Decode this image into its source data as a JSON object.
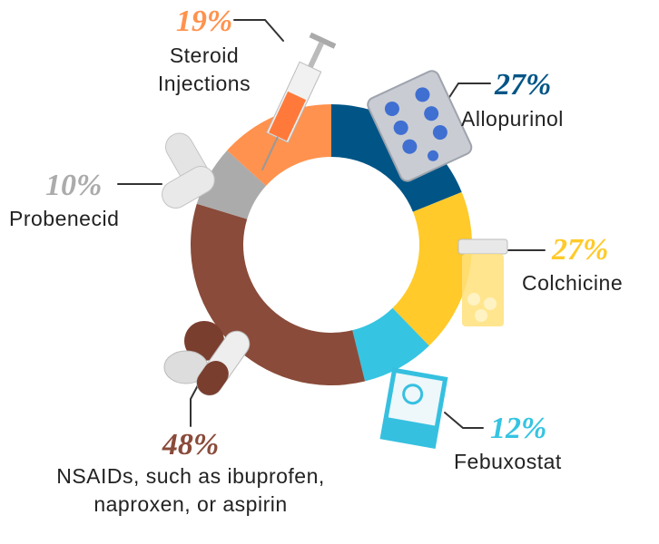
{
  "chart_data": {
    "type": "donut",
    "categories": [
      "Allopurinol",
      "Colchicine",
      "Febuxostat",
      "NSAIDs, such as ibuprofen, naproxen, or aspirin",
      "Probenecid",
      "Steroid Injections"
    ],
    "values": [
      27,
      27,
      12,
      48,
      10,
      19
    ],
    "value_labels": [
      "27%",
      "27%",
      "12%",
      "48%",
      "10%",
      "19%"
    ],
    "colors": [
      "#005586",
      "#ffca2a",
      "#35c4e2",
      "#8a4b3a",
      "#ababab",
      "#ff924e"
    ]
  }
}
